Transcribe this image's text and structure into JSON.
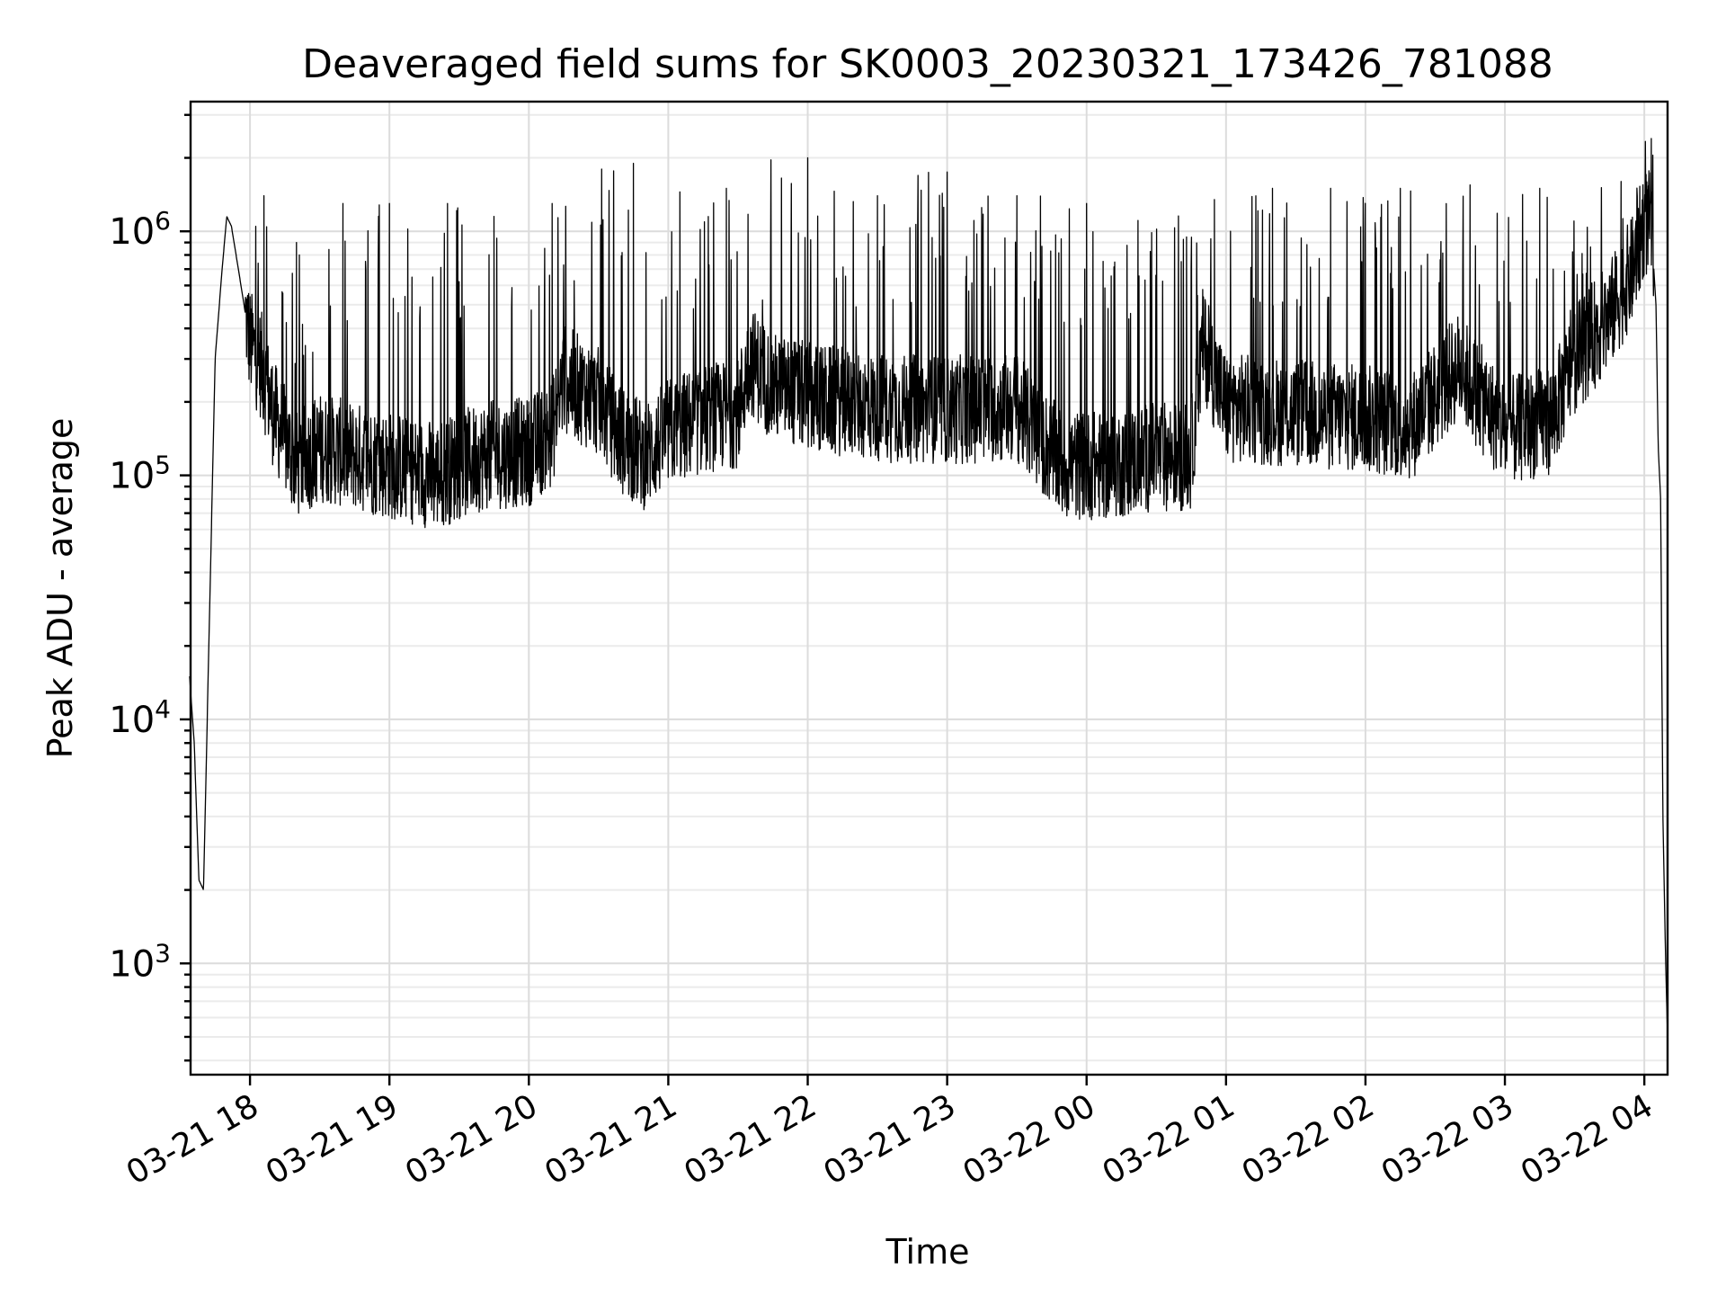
{
  "chart_data": {
    "type": "line",
    "title": "Deaveraged field sums for SK0003_20230321_173426_781088",
    "xlabel": "Time",
    "ylabel": "Peak ADU - average",
    "yscale": "log",
    "ylim": [
      350,
      3400000
    ],
    "xlim": [
      "2023-03-21 17:34:26",
      "2023-03-22 04:10:00"
    ],
    "grid": true,
    "line_color": "#000000",
    "x_ticks": [
      {
        "label": "03-21 18",
        "time": "2023-03-21 18:00"
      },
      {
        "label": "03-21 19",
        "time": "2023-03-21 19:00"
      },
      {
        "label": "03-21 20",
        "time": "2023-03-21 20:00"
      },
      {
        "label": "03-21 21",
        "time": "2023-03-21 21:00"
      },
      {
        "label": "03-21 22",
        "time": "2023-03-21 22:00"
      },
      {
        "label": "03-21 23",
        "time": "2023-03-21 23:00"
      },
      {
        "label": "03-22 00",
        "time": "2023-03-22 00:00"
      },
      {
        "label": "03-22 01",
        "time": "2023-03-22 01:00"
      },
      {
        "label": "03-22 02",
        "time": "2023-03-22 02:00"
      },
      {
        "label": "03-22 03",
        "time": "2023-03-22 03:00"
      },
      {
        "label": "03-22 04",
        "time": "2023-03-22 04:00"
      }
    ],
    "y_ticks": [
      {
        "base": "10",
        "exp": "3",
        "value": 1000
      },
      {
        "base": "10",
        "exp": "4",
        "value": 10000
      },
      {
        "base": "10",
        "exp": "5",
        "value": 100000
      },
      {
        "base": "10",
        "exp": "6",
        "value": 1000000
      }
    ],
    "series": [
      {
        "baseline": [
          [
            "2023-03-21 17:34",
            15000
          ],
          [
            "2023-03-21 17:36",
            8000
          ],
          [
            "2023-03-21 17:38",
            2200
          ],
          [
            "2023-03-21 17:40",
            2000
          ],
          [
            "2023-03-21 17:42",
            15000
          ],
          [
            "2023-03-21 17:45",
            300000
          ],
          [
            "2023-03-21 17:48",
            700000
          ],
          [
            "2023-03-21 17:50",
            1150000
          ],
          [
            "2023-03-21 17:52",
            1050000
          ],
          [
            "2023-03-21 17:55",
            700000
          ],
          [
            "2023-03-21 18:00",
            350000
          ],
          [
            "2023-03-21 18:05",
            280000
          ],
          [
            "2023-03-21 18:10",
            180000
          ],
          [
            "2023-03-21 18:15",
            140000
          ],
          [
            "2023-03-21 18:20",
            110000
          ],
          [
            "2023-03-21 18:30",
            130000
          ],
          [
            "2023-03-21 18:45",
            120000
          ],
          [
            "2023-03-21 19:00",
            110000
          ],
          [
            "2023-03-21 19:20",
            100000
          ],
          [
            "2023-03-21 19:40",
            120000
          ],
          [
            "2023-03-21 20:00",
            125000
          ],
          [
            "2023-03-21 20:10",
            150000
          ],
          [
            "2023-03-21 20:15",
            250000
          ],
          [
            "2023-03-21 20:30",
            200000
          ],
          [
            "2023-03-21 20:40",
            140000
          ],
          [
            "2023-03-21 20:50",
            120000
          ],
          [
            "2023-03-21 21:00",
            150000
          ],
          [
            "2023-03-21 21:15",
            170000
          ],
          [
            "2023-03-21 21:30",
            180000
          ],
          [
            "2023-03-21 21:35",
            300000
          ],
          [
            "2023-03-21 21:45",
            230000
          ],
          [
            "2023-03-21 22:00",
            210000
          ],
          [
            "2023-03-21 22:30",
            190000
          ],
          [
            "2023-03-21 23:00",
            185000
          ],
          [
            "2023-03-21 23:30",
            190000
          ],
          [
            "2023-03-21 23:40",
            140000
          ],
          [
            "2023-03-21 23:50",
            110000
          ],
          [
            "2023-03-22 00:10",
            110000
          ],
          [
            "2023-03-22 00:30",
            120000
          ],
          [
            "2023-03-22 00:45",
            120000
          ],
          [
            "2023-03-22 00:50",
            350000
          ],
          [
            "2023-03-22 01:00",
            190000
          ],
          [
            "2023-03-22 01:30",
            180000
          ],
          [
            "2023-03-22 02:00",
            170000
          ],
          [
            "2023-03-22 02:20",
            160000
          ],
          [
            "2023-03-22 02:40",
            280000
          ],
          [
            "2023-03-22 03:00",
            150000
          ],
          [
            "2023-03-22 03:20",
            170000
          ],
          [
            "2023-03-22 03:30",
            300000
          ],
          [
            "2023-03-22 03:45",
            450000
          ],
          [
            "2023-03-22 03:55",
            700000
          ],
          [
            "2023-03-22 04:00",
            1100000
          ],
          [
            "2023-03-22 04:03",
            1050000
          ],
          [
            "2023-03-22 04:05",
            500000
          ],
          [
            "2023-03-22 04:06",
            130000
          ],
          [
            "2023-03-22 04:07",
            80000
          ],
          [
            "2023-03-22 04:08",
            4000
          ],
          [
            "2023-03-22 04:09",
            1200
          ],
          [
            "2023-03-22 04:10",
            500
          ]
        ],
        "peaks": [
          [
            "2023-03-21 18:06",
            1400000
          ],
          [
            "2023-03-21 18:20",
            900000
          ],
          [
            "2023-03-21 18:40",
            1300000
          ],
          [
            "2023-03-21 19:00",
            1300000
          ],
          [
            "2023-03-21 19:25",
            1300000
          ],
          [
            "2023-03-21 19:45",
            1150000
          ],
          [
            "2023-03-21 20:10",
            1300000
          ],
          [
            "2023-03-21 20:45",
            1900000
          ],
          [
            "2023-03-21 21:05",
            1450000
          ],
          [
            "2023-03-21 21:25",
            1500000
          ],
          [
            "2023-03-21 22:00",
            2000000
          ],
          [
            "2023-03-21 22:30",
            1400000
          ],
          [
            "2023-03-21 23:00",
            1750000
          ],
          [
            "2023-03-21 23:30",
            1400000
          ],
          [
            "2023-03-22 00:00",
            1300000
          ],
          [
            "2023-03-22 00:55",
            1350000
          ],
          [
            "2023-03-22 01:20",
            1500000
          ],
          [
            "2023-03-22 01:45",
            1500000
          ],
          [
            "2023-03-22 02:15",
            1500000
          ],
          [
            "2023-03-22 02:45",
            1550000
          ],
          [
            "2023-03-22 03:15",
            1500000
          ],
          [
            "2023-03-22 03:50",
            1600000
          ],
          [
            "2023-03-22 04:03",
            2400000
          ]
        ]
      }
    ]
  }
}
